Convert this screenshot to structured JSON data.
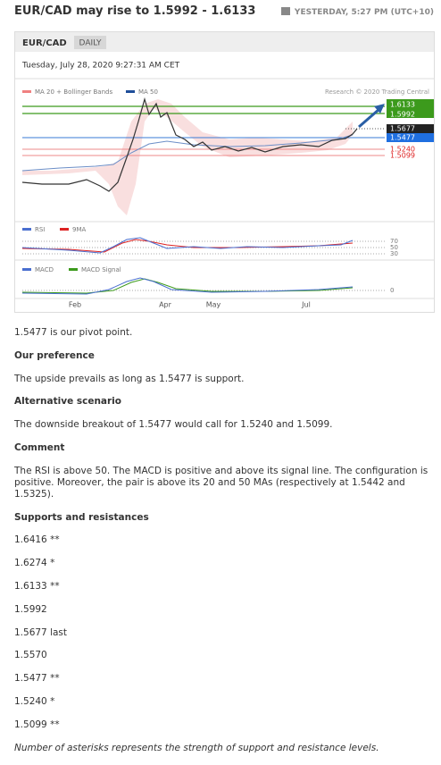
{
  "header": {
    "title": "EUR/CAD may rise to 1.5992 - 1.6133",
    "timestamp": "YESTERDAY, 5:27 PM (UTC+10)"
  },
  "chart": {
    "symbol": "EUR/CAD",
    "timeframe": "DAILY",
    "datetime": "Tuesday, July 28, 2020 9:27:31 AM CET",
    "legend": [
      "MA 20 + Bollinger Bands",
      "MA 50"
    ],
    "credit": "Research © 2020 Trading Central",
    "levels": [
      "1.6133",
      "1.5992",
      "1.5677",
      "1.5477",
      "1.5240",
      "1.5099"
    ],
    "rsi_legend": [
      "RSI",
      "9MA"
    ],
    "rsi_ticks": [
      "70",
      "50",
      "30"
    ],
    "macd_legend": [
      "MACD",
      "MACD Signal"
    ],
    "macd_ticks": [
      "0"
    ],
    "months": [
      "Feb",
      "Apr",
      "May",
      "Jul"
    ]
  },
  "intro": "1.5477 is our pivot point.",
  "sections": [
    {
      "heading": "Our preference",
      "text": "The upside prevails as long as 1.5477 is support."
    },
    {
      "heading": "Alternative scenario",
      "text": "The downside breakout of 1.5477 would call for 1.5240 and 1.5099."
    },
    {
      "heading": "Comment",
      "text": "The RSI is above 50. The MACD is positive and above its signal line. The configuration is positive. Moreover, the pair is above its 20 and 50 MAs (respectively at 1.5442 and 1.5325)."
    }
  ],
  "supports": {
    "heading": "Supports and resistances",
    "items": [
      "1.6416 **",
      "1.6274 *",
      "1.6133 **",
      "1.5992",
      "1.5677 last",
      "1.5570",
      "1.5477 **",
      "1.5240 *",
      "1.5099 **"
    ]
  },
  "footnote": "Number of asterisks represents the strength of support and resistance levels."
}
